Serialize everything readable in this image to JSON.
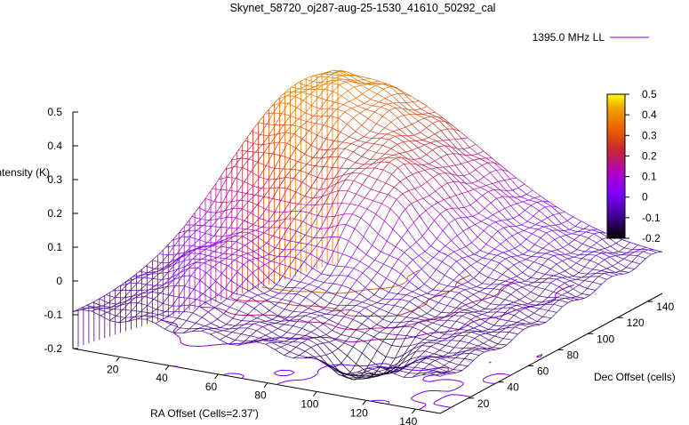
{
  "chart_data": {
    "type": "surface",
    "title": "Skynet_58720_oj287-aug-25-1530_41610_50292_cal",
    "zlabel": "Intensity (K)",
    "xlabel": "RA Offset (Cells=2.37')",
    "ylabel": "Dec Offset (cells)",
    "legend": {
      "label": "1395.0 MHz LL",
      "color": "#9b30ff",
      "placement": "top-right"
    },
    "zlim": [
      -0.2,
      0.5
    ],
    "zticks": [
      "0.5",
      "0.4",
      "0.3",
      "0.2",
      "0.1",
      "0",
      "-0.1",
      "-0.2"
    ],
    "xticks": [
      "20",
      "40",
      "60",
      "80",
      "100",
      "120",
      "140"
    ],
    "yticks": [
      "20",
      "40",
      "60",
      "80",
      "100",
      "120",
      "140"
    ],
    "colorbar": {
      "range": [
        -0.2,
        0.5
      ],
      "ticks": [
        "0.5",
        "0.4",
        "0.3",
        "0.2",
        "0.1",
        "0",
        "-0.1",
        "-0.2"
      ],
      "palette": [
        "#000000",
        "#3c0087",
        "#7a00ff",
        "#b000c8",
        "#c8282d",
        "#e86400",
        "#f0a000",
        "#ffff00"
      ]
    },
    "surface_description": "Broad emission hump peaking near 0.5 K at the far (high Dec) edge, ridge near 0.3-0.4 K, falling to about -0.1 K toward high RA / low Dec, with a dip near -0.2 K at the near-right region.",
    "contours": [
      {
        "level": 0.4,
        "color": "#e8a000"
      },
      {
        "level": 0.3,
        "color": "#d86a00"
      },
      {
        "level": 0.2,
        "color": "#c83c1e"
      },
      {
        "level": 0.1,
        "color": "#b01e78"
      },
      {
        "level": 0.0,
        "color": "#9000c8"
      },
      {
        "level": -0.1,
        "color": "#7a00ff"
      }
    ],
    "grid": false,
    "grid_range": {
      "x": [
        1,
        150
      ],
      "y": [
        1,
        150
      ]
    }
  }
}
